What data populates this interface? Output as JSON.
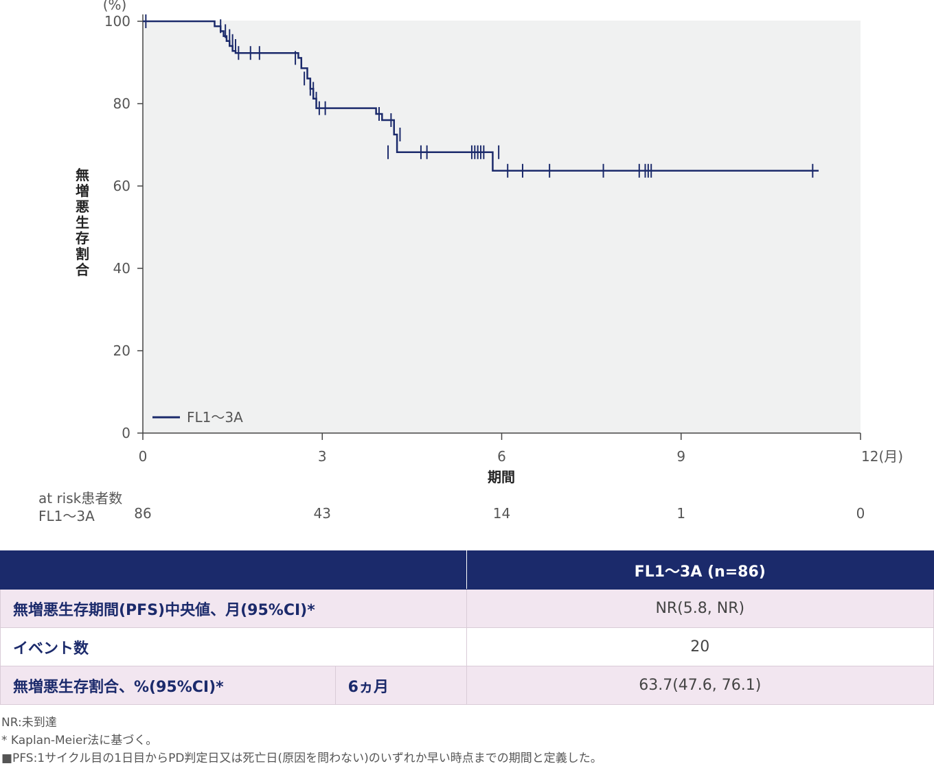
{
  "chart_data": {
    "type": "line",
    "subtype": "kaplan-meier",
    "y_unit": "(%)",
    "x_unit": "12(月)",
    "ylabel": "無増悪生存割合",
    "xlabel": "期間",
    "xlim": [
      0,
      12
    ],
    "ylim": [
      0,
      100
    ],
    "x_ticks": [
      "0",
      "3",
      "6",
      "9",
      "12"
    ],
    "y_ticks": [
      "0",
      "20",
      "40",
      "60",
      "80",
      "100"
    ],
    "grid": false,
    "legend_position": "bottom-left",
    "series": [
      {
        "name": "FL1～3A",
        "color": "#1b2a6b",
        "x": [
          0,
          1.2,
          1.3,
          1.35,
          1.4,
          1.45,
          1.5,
          1.55,
          2.6,
          2.65,
          2.75,
          2.8,
          2.85,
          2.9,
          3.9,
          4.0,
          4.2,
          4.25,
          5.85,
          11.3
        ],
        "y": [
          100,
          98.8,
          97.6,
          96.4,
          95.2,
          94.0,
          92.8,
          92.3,
          91.1,
          88.6,
          86.1,
          83.6,
          81.2,
          78.9,
          77.5,
          76.0,
          72.5,
          68.2,
          63.7,
          63.7
        ],
        "censor_x": [
          0.05,
          1.3,
          1.38,
          1.45,
          1.5,
          1.55,
          1.6,
          1.8,
          1.95,
          2.55,
          2.7,
          2.8,
          2.85,
          2.9,
          2.95,
          3.05,
          3.95,
          4.15,
          4.3,
          4.1,
          4.65,
          4.75,
          5.5,
          5.55,
          5.6,
          5.65,
          5.7,
          5.95,
          6.1,
          6.35,
          6.8,
          7.7,
          8.3,
          8.4,
          8.45,
          8.5,
          11.2
        ],
        "censor_y": [
          100,
          98.8,
          97.6,
          96.4,
          95.2,
          94.0,
          92.3,
          92.3,
          92.3,
          91.1,
          86.1,
          83.6,
          83.6,
          81.2,
          78.9,
          78.9,
          77.5,
          76.0,
          72.5,
          68.2,
          68.2,
          68.2,
          68.2,
          68.2,
          68.2,
          68.2,
          68.2,
          68.2,
          63.7,
          63.7,
          63.7,
          63.7,
          63.7,
          63.7,
          63.7,
          63.7,
          63.7
        ]
      }
    ],
    "at_risk": {
      "title": "at risk患者数",
      "label": "FL1～3A",
      "values": [
        "86",
        "43",
        "14",
        "1",
        "0"
      ]
    }
  },
  "table": {
    "header": "FL1～3A (n=86)",
    "rows": [
      {
        "label": "無増悪生存期間(PFS)中央値、月(95%CI)*",
        "value": "NR(5.8, NR)"
      },
      {
        "label": "イベント数",
        "value": "20"
      },
      {
        "label": "無増悪生存割合、%(95%CI)*",
        "sub": "6ヵ月",
        "value": "63.7(47.6, 76.1)"
      }
    ]
  },
  "notes": [
    "NR:未到達",
    "* Kaplan-Meier法に基づく。",
    "■PFS:1サイクル目の1日目からPD判定日又は死亡日(原因を問わない)のいずれか早い時点までの期間と定義した。"
  ]
}
